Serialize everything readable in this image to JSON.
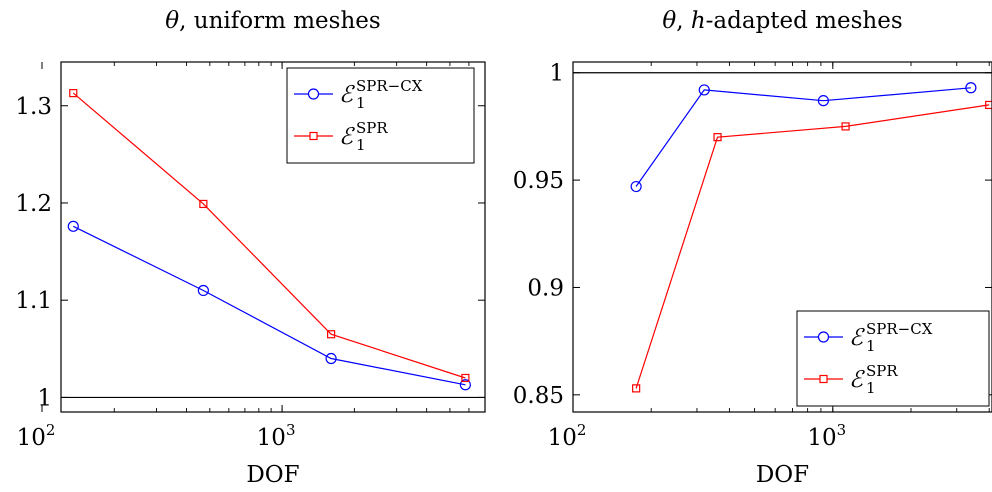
{
  "chart_data": [
    {
      "type": "line",
      "title": "θ, uniform meshes",
      "xlabel": "DOF",
      "ylabel": "",
      "xscale": "log",
      "xlim": [
        120,
        7000
      ],
      "ylim": [
        0.985,
        1.345
      ],
      "xticks": [
        {
          "value": 100,
          "base": "10",
          "exp": "2"
        },
        {
          "value": 1000,
          "base": "10",
          "exp": "3"
        }
      ],
      "yticks": [
        {
          "value": 1,
          "label": "1"
        },
        {
          "value": 1.1,
          "label": "1.1"
        },
        {
          "value": 1.2,
          "label": "1.2"
        },
        {
          "value": 1.3,
          "label": "1.3"
        }
      ],
      "reference_line": 1,
      "legend_position": "top-right",
      "grid": false,
      "series": [
        {
          "name_main": "ℰ",
          "name_sup": "SPR−CX",
          "name_sub": "1",
          "color": "#0000ff",
          "marker": "circle",
          "x": [
            135,
            470,
            1600,
            5800
          ],
          "y": [
            1.176,
            1.11,
            1.04,
            1.013
          ]
        },
        {
          "name_main": "ℰ",
          "name_sup": "SPR",
          "name_sub": "1",
          "color": "#ff0000",
          "marker": "square",
          "x": [
            135,
            470,
            1600,
            5800
          ],
          "y": [
            1.313,
            1.199,
            1.065,
            1.02
          ]
        }
      ]
    },
    {
      "type": "line",
      "title": "θ, h-adapted meshes",
      "xlabel": "DOF",
      "ylabel": "",
      "xscale": "log",
      "xlim": [
        100,
        4100
      ],
      "ylim": [
        0.842,
        1.005
      ],
      "xticks": [
        {
          "value": 100,
          "base": "10",
          "exp": "2"
        },
        {
          "value": 1000,
          "base": "10",
          "exp": "3"
        }
      ],
      "yticks": [
        {
          "value": 0.85,
          "label": "0.85"
        },
        {
          "value": 0.9,
          "label": "0.9"
        },
        {
          "value": 0.95,
          "label": "0.95"
        },
        {
          "value": 1,
          "label": "1"
        }
      ],
      "reference_line": 1,
      "legend_position": "bottom-right",
      "grid": false,
      "series": [
        {
          "name_main": "ℰ",
          "name_sup": "SPR−CX",
          "name_sub": "1",
          "color": "#0000ff",
          "marker": "circle",
          "x": [
            175,
            320,
            920,
            3400
          ],
          "y": [
            0.947,
            0.992,
            0.987,
            0.993
          ]
        },
        {
          "name_main": "ℰ",
          "name_sup": "SPR",
          "name_sub": "1",
          "color": "#ff0000",
          "marker": "square",
          "x": [
            175,
            360,
            1120,
            4000
          ],
          "y": [
            0.853,
            0.97,
            0.975,
            0.985
          ]
        }
      ]
    }
  ]
}
